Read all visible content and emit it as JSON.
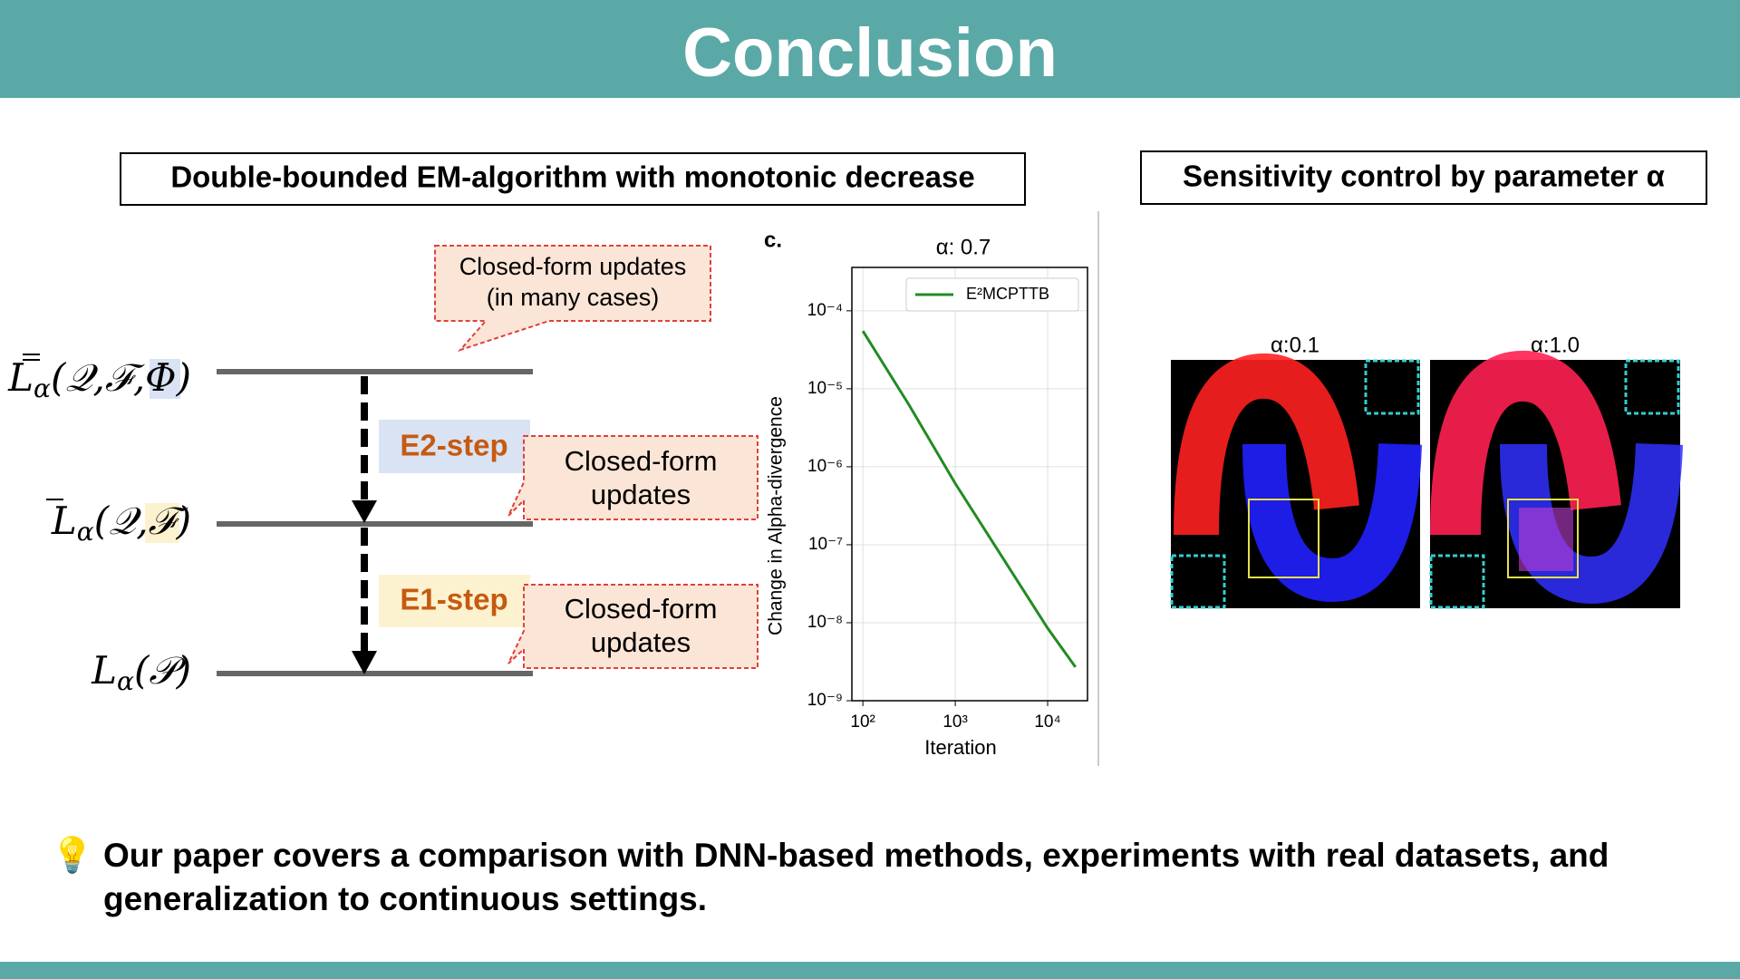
{
  "header": {
    "title": "Conclusion"
  },
  "left_panel": {
    "title": "Double-bounded EM-algorithm with monotonic decrease",
    "levels": [
      {
        "symbol": "L",
        "sub": "α",
        "args": "(𝒬,ℱ,Φ)"
      },
      {
        "symbol": "L",
        "sub": "α",
        "args": "(𝒬,ℱ)"
      },
      {
        "symbol": "L",
        "sub": "α",
        "args": "(𝒫)"
      }
    ],
    "steps": [
      "E2-step",
      "E1-step"
    ],
    "callouts": [
      [
        "Closed-form updates",
        "(in many cases)"
      ],
      [
        "Closed-form",
        "updates"
      ],
      [
        "Closed-form",
        "updates"
      ]
    ]
  },
  "chart_data": {
    "type": "line",
    "panel_label": "c.",
    "title": "α: 0.7",
    "x_label": "Iteration",
    "y_label": "Change in Alpha-divergence",
    "xscale": "log",
    "yscale": "log",
    "grid": true,
    "x": [
      100,
      316,
      1000,
      3162,
      10000,
      20000
    ],
    "series": [
      {
        "name": "E²MCPTTB",
        "color": "#228b22",
        "values": [
          5.5e-05,
          6.2e-06,
          6.1e-07,
          7.2e-08,
          8.5e-09,
          2.7e-09
        ]
      }
    ],
    "xlim": [
      76,
      27000
    ],
    "ylim": [
      1e-09,
      0.00036
    ],
    "xticks": [
      {
        "value": 100,
        "label": "10²"
      },
      {
        "value": 1000,
        "label": "10³"
      },
      {
        "value": 10000,
        "label": "10⁴"
      }
    ],
    "yticks": [
      {
        "value": 0.0001,
        "label": "10⁻⁴"
      },
      {
        "value": 1e-05,
        "label": "10⁻⁵"
      },
      {
        "value": 1e-06,
        "label": "10⁻⁶"
      },
      {
        "value": 1e-07,
        "label": "10⁻⁷"
      },
      {
        "value": 1e-08,
        "label": "10⁻⁸"
      },
      {
        "value": 1e-09,
        "label": "10⁻⁹"
      }
    ],
    "legend": "upper right"
  },
  "right_panel": {
    "title": "Sensitivity control by parameter α",
    "images": [
      "α:0.1",
      "α:1.0"
    ]
  },
  "footer": {
    "icon": "💡",
    "text": "Our paper covers a comparison with DNN-based methods, experiments with real datasets, and generalization to continuous settings."
  }
}
